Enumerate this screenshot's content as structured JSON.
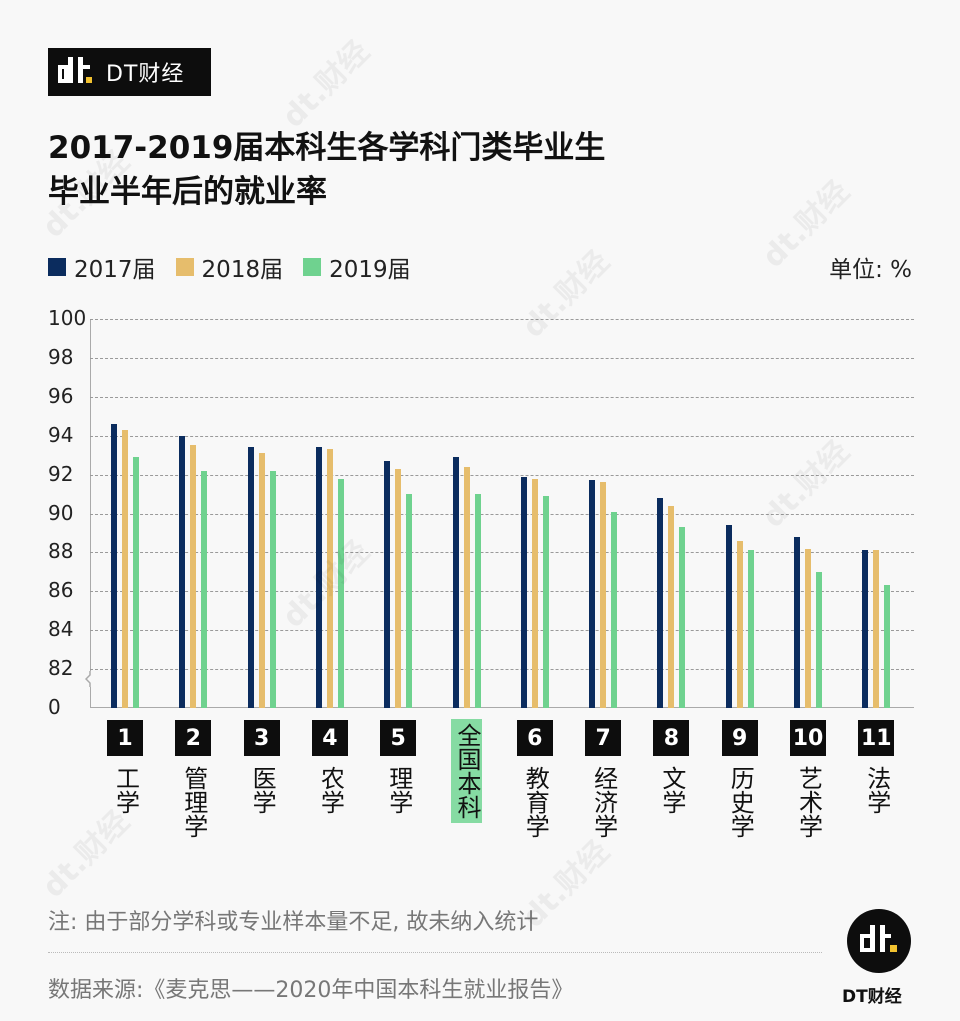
{
  "brand": {
    "name": "DT财经"
  },
  "title": {
    "line1": "2017-2019届本科生各学科门类毕业生",
    "line2": "毕业半年后的就业率"
  },
  "legend": [
    {
      "label": "2017届",
      "color": "#0b2c5e"
    },
    {
      "label": "2018届",
      "color": "#e6bd6c"
    },
    {
      "label": "2019届",
      "color": "#6fd28f"
    }
  ],
  "unit": "单位: %",
  "y_ticks": [
    "100",
    "98",
    "96",
    "94",
    "92",
    "90",
    "88",
    "86",
    "84",
    "82",
    "0"
  ],
  "categories": [
    {
      "num": "1",
      "label": "工学"
    },
    {
      "num": "2",
      "label": "管理学"
    },
    {
      "num": "3",
      "label": "医学"
    },
    {
      "num": "4",
      "label": "农学"
    },
    {
      "num": "5",
      "label": "理学"
    },
    {
      "num": "",
      "label": "全国本科",
      "highlight": true
    },
    {
      "num": "6",
      "label": "教育学"
    },
    {
      "num": "7",
      "label": "经济学"
    },
    {
      "num": "8",
      "label": "文学"
    },
    {
      "num": "9",
      "label": "历史学"
    },
    {
      "num": "10",
      "label": "艺术学"
    },
    {
      "num": "11",
      "label": "法学"
    }
  ],
  "chart_data": {
    "type": "bar",
    "title": "2017-2019届本科生各学科门类毕业生毕业半年后的就业率",
    "xlabel": "",
    "ylabel": "单位: %",
    "ylim": [
      80,
      100
    ],
    "y_axis_break": true,
    "grid": true,
    "legend_position": "top-left",
    "categories": [
      "工学",
      "管理学",
      "医学",
      "农学",
      "理学",
      "全国本科",
      "教育学",
      "经济学",
      "文学",
      "历史学",
      "艺术学",
      "法学"
    ],
    "series": [
      {
        "name": "2017届",
        "color": "#0b2c5e",
        "values": [
          94.6,
          94.0,
          93.4,
          93.4,
          92.7,
          92.9,
          91.9,
          91.7,
          90.8,
          89.4,
          88.8,
          88.1
        ]
      },
      {
        "name": "2018届",
        "color": "#e6bd6c",
        "values": [
          94.3,
          93.5,
          93.1,
          93.3,
          92.3,
          92.4,
          91.8,
          91.6,
          90.4,
          88.6,
          88.2,
          88.1
        ]
      },
      {
        "name": "2019届",
        "color": "#6fd28f",
        "values": [
          92.9,
          92.2,
          92.2,
          91.8,
          91.0,
          91.0,
          90.9,
          90.1,
          89.3,
          88.1,
          87.0,
          86.3
        ]
      }
    ]
  },
  "footer": {
    "note": "注: 由于部分学科或专业样本量不足, 故未纳入统计",
    "source": "数据来源:《麦克思——2020年中国本科生就业报告》",
    "logo_text": "DT财经"
  }
}
